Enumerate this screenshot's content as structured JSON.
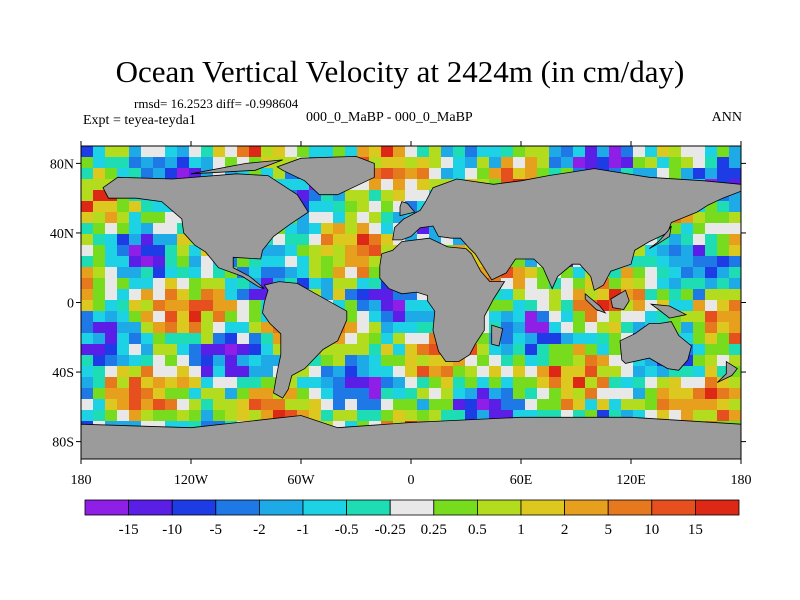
{
  "chart_data": {
    "type": "heatmap",
    "title": "Ocean Vertical Velocity at 2424m (in cm/day)",
    "stats_line": "rmsd= 16.2523  diff= -0.998604",
    "left_label": "Expt = teyea-teyda1",
    "center_label": "000_0_MaBP - 000_0_MaBP",
    "right_label": "ANN",
    "x_ticks": [
      "180",
      "120W",
      "60W",
      "0",
      "60E",
      "120E",
      "180"
    ],
    "y_ticks": [
      "80N",
      "40N",
      "0",
      "40S",
      "80S"
    ],
    "xlim": [
      -180,
      180
    ],
    "ylim": [
      -90,
      90
    ],
    "colorbar": {
      "labels": [
        "-15",
        "-10",
        "-5",
        "-2",
        "-1",
        "-0.5",
        "-0.25",
        "0.25",
        "0.5",
        "1",
        "2",
        "5",
        "10",
        "15"
      ],
      "colors": [
        "#8f1ee6",
        "#5b1ee6",
        "#1e3ce6",
        "#1e78e6",
        "#1eaae6",
        "#1ed2e6",
        "#1edcb4",
        "#e8e8e8",
        "#78dc1e",
        "#b4dc1e",
        "#dcc81e",
        "#e6a01e",
        "#e6781e",
        "#e6501e",
        "#dc2814"
      ]
    },
    "land_color": "#9b9b9b"
  }
}
